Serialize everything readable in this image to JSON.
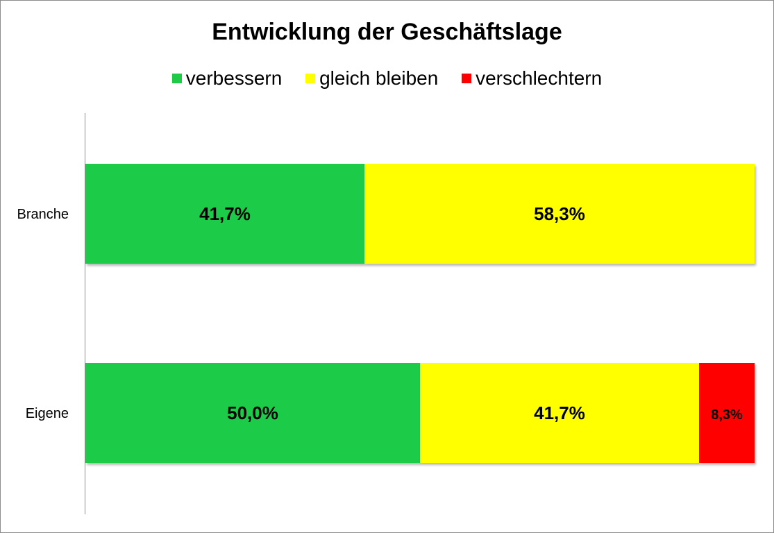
{
  "chart_data": {
    "type": "bar",
    "orientation": "horizontal",
    "stacked": true,
    "title": "Entwicklung der Geschäftslage",
    "categories": [
      "Branche",
      "Eigene"
    ],
    "series": [
      {
        "name": "verbessern",
        "color": "#1ecb47",
        "values": [
          41.7,
          50.0
        ],
        "labels": [
          "41,7%",
          "50,0%"
        ]
      },
      {
        "name": "gleich bleiben",
        "color": "#ffff00",
        "values": [
          58.3,
          41.7
        ],
        "labels": [
          "58,3%",
          "41,7%"
        ]
      },
      {
        "name": "verschlechtern",
        "color": "#ff0000",
        "values": [
          0,
          8.3
        ],
        "labels": [
          "",
          "8,3%"
        ]
      }
    ],
    "xlim": [
      0,
      100
    ],
    "legend_position": "top",
    "grid": false
  }
}
